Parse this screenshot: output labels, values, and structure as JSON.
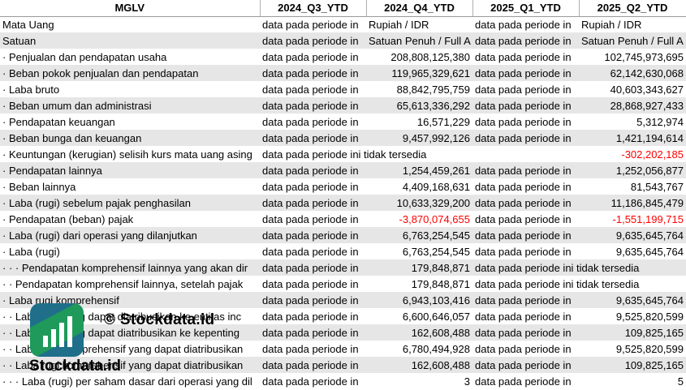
{
  "columns": [
    "MGLV",
    "2024_Q3_YTD",
    "2024_Q4_YTD",
    "2025_Q1_YTD",
    "2025_Q2_YTD"
  ],
  "na_text": "data pada periode in",
  "na_full": "data pada periode ini tidak tersedia",
  "rows": [
    {
      "label": "Mata Uang",
      "cells": [
        "data pada periode in",
        "Rupiah / IDR",
        "data pada periode in",
        "Rupiah / IDR"
      ]
    },
    {
      "label": "Satuan",
      "cells": [
        "data pada periode in",
        "Satuan Penuh / Full A",
        "data pada periode in",
        "Satuan Penuh / Full A"
      ]
    },
    {
      "label": "· Penjualan dan pendapatan usaha",
      "cells": [
        "data pada periode in",
        "208,808,125,380",
        "data pada periode in",
        "102,745,973,695"
      ]
    },
    {
      "label": "· Beban pokok penjualan dan pendapatan",
      "cells": [
        "data pada periode in",
        "119,965,329,621",
        "data pada periode in",
        "62,142,630,068"
      ]
    },
    {
      "label": "· Laba bruto",
      "cells": [
        "data pada periode in",
        "88,842,795,759",
        "data pada periode in",
        "40,603,343,627"
      ]
    },
    {
      "label": "· Beban umum dan administrasi",
      "cells": [
        "data pada periode in",
        "65,613,336,292",
        "data pada periode in",
        "28,868,927,433"
      ]
    },
    {
      "label": "· Pendapatan keuangan",
      "cells": [
        "data pada periode in",
        "16,571,229",
        "data pada periode in",
        "5,312,974"
      ]
    },
    {
      "label": "· Beban bunga dan keuangan",
      "cells": [
        "data pada periode in",
        "9,457,992,126",
        "data pada periode in",
        "1,421,194,614"
      ]
    },
    {
      "label": "· Keuntungan (kerugian) selisih kurs mata uang asing",
      "cells": [
        "data pada periode ini tidak tersedia",
        "",
        "",
        "-302,202,185"
      ]
    },
    {
      "label": "· Pendapatan lainnya",
      "cells": [
        "data pada periode in",
        "1,254,459,261",
        "data pada periode in",
        "1,252,056,877"
      ]
    },
    {
      "label": "· Beban lainnya",
      "cells": [
        "data pada periode in",
        "4,409,168,631",
        "data pada periode in",
        "81,543,767"
      ]
    },
    {
      "label": "· Laba (rugi) sebelum pajak penghasilan",
      "cells": [
        "data pada periode in",
        "10,633,329,200",
        "data pada periode in",
        "11,186,845,479"
      ]
    },
    {
      "label": "· Pendapatan (beban) pajak",
      "cells": [
        "data pada periode in",
        "-3,870,074,655",
        "data pada periode in",
        "-1,551,199,715"
      ]
    },
    {
      "label": "· Laba (rugi) dari operasi yang dilanjutkan",
      "cells": [
        "data pada periode in",
        "6,763,254,545",
        "data pada periode in",
        "9,635,645,764"
      ]
    },
    {
      "label": "· Laba (rugi)",
      "cells": [
        "data pada periode in",
        "6,763,254,545",
        "data pada periode in",
        "9,635,645,764"
      ]
    },
    {
      "label": "· · · Pendapatan komprehensif lainnya yang akan dir",
      "cells": [
        "data pada periode in",
        "179,848,871",
        "data pada periode ini tidak tersedia",
        ""
      ]
    },
    {
      "label": "· · Pendapatan komprehensif lainnya, setelah pajak",
      "cells": [
        "data pada periode in",
        "179,848,871",
        "data pada periode ini tidak tersedia",
        ""
      ]
    },
    {
      "label": "· Laba rugi komprehensif",
      "cells": [
        "data pada periode in",
        "6,943,103,416",
        "data pada periode in",
        "9,635,645,764"
      ]
    },
    {
      "label": "· · Laba rugi yang dapat diatribusikan ke entitas inc",
      "cells": [
        "data pada periode in",
        "6,600,646,057",
        "data pada periode in",
        "9,525,820,599"
      ]
    },
    {
      "label": "· · Laba rugi yang dapat diatribusikan ke kepenting",
      "cells": [
        "data pada periode in",
        "162,608,488",
        "data pada periode in",
        "109,825,165"
      ]
    },
    {
      "label": "· · Laba rugi komprehensif yang dapat diatribusikan",
      "cells": [
        "data pada periode in",
        "6,780,494,928",
        "data pada periode in",
        "9,525,820,599"
      ]
    },
    {
      "label": "· · Laba rugi komprehensif yang dapat diatribusikan",
      "cells": [
        "data pada periode in",
        "162,608,488",
        "data pada periode in",
        "109,825,165"
      ]
    },
    {
      "label": "· · · Laba (rugi) per saham dasar dari operasi yang dil",
      "cells": [
        "data pada periode in",
        "3",
        "data pada periode in",
        "5"
      ]
    }
  ],
  "watermark": {
    "copyright": "© Stockdata.id",
    "brand": "Stockdata.id"
  }
}
